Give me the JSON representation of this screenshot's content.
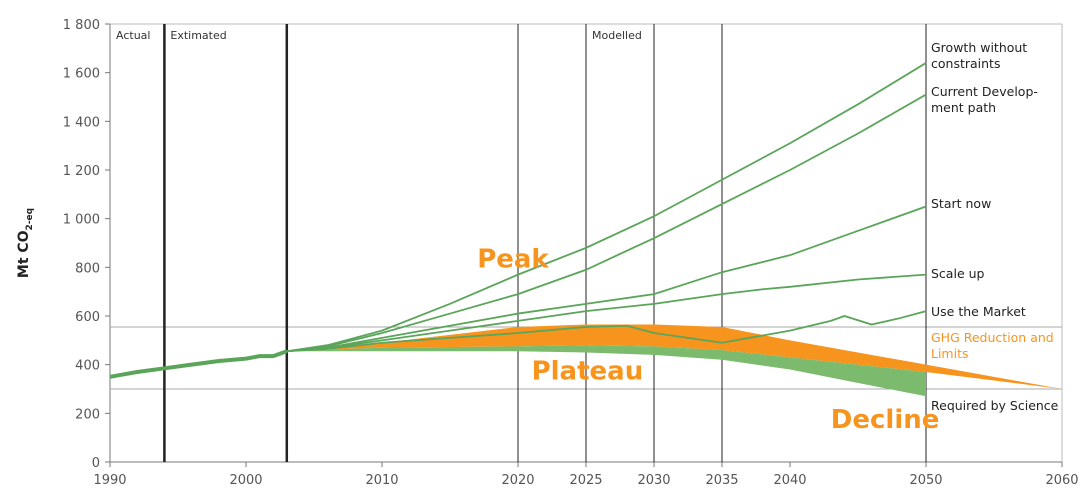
{
  "chart_data": {
    "type": "line",
    "ylabel": "Mt CO",
    "ylabel_sub": "2-eq",
    "xlim": [
      1990,
      2060
    ],
    "xticks": [
      1990,
      2000,
      2010,
      2020,
      2025,
      2030,
      2035,
      2040,
      2050,
      2060
    ],
    "ylim": [
      0,
      1800
    ],
    "yticks": [
      0,
      200,
      400,
      600,
      800,
      {
        "value": 1000,
        "label": "1 000"
      },
      {
        "value": 1200,
        "label": "1 200"
      },
      {
        "value": 1400,
        "label": "1 400"
      },
      {
        "value": 1600,
        "label": "1 600"
      },
      {
        "value": 1800,
        "label": "1 800"
      }
    ],
    "vlines": [
      1994,
      2003,
      2020,
      2025,
      2030,
      2035,
      2050
    ],
    "hlines": [
      555,
      300
    ],
    "sections": [
      {
        "text": "Actual",
        "x": 1990
      },
      {
        "text": "Extimated",
        "x": 1994
      },
      {
        "text": "Modelled",
        "x": 2025
      }
    ],
    "history": {
      "color": "#5aa55a",
      "x": [
        1990,
        1992,
        1994,
        1996,
        1998,
        2000,
        2001,
        2002,
        2003
      ],
      "values": [
        350,
        370,
        385,
        400,
        415,
        425,
        435,
        435,
        455
      ]
    },
    "series": [
      {
        "name": "Growth without constraints",
        "color": "#5aa55a",
        "x": [
          2003,
          2006,
          2010,
          2015,
          2020,
          2025,
          2030,
          2035,
          2040,
          2045,
          2050
        ],
        "values": [
          455,
          480,
          540,
          650,
          770,
          880,
          1010,
          1160,
          1310,
          1470,
          1640
        ]
      },
      {
        "name": "Current Develop-ment path",
        "color": "#5aa55a",
        "x": [
          2003,
          2006,
          2010,
          2015,
          2020,
          2025,
          2030,
          2035,
          2040,
          2045,
          2050
        ],
        "values": [
          455,
          475,
          530,
          610,
          690,
          790,
          920,
          1060,
          1200,
          1350,
          1510
        ]
      },
      {
        "name": "Start now",
        "color": "#5aa55a",
        "x": [
          2003,
          2006,
          2010,
          2015,
          2020,
          2025,
          2030,
          2035,
          2040,
          2045,
          2050
        ],
        "values": [
          455,
          470,
          510,
          560,
          610,
          650,
          690,
          780,
          850,
          950,
          1050
        ]
      },
      {
        "name": "Scale up",
        "color": "#5aa55a",
        "x": [
          2003,
          2006,
          2010,
          2015,
          2020,
          2025,
          2030,
          2035,
          2038,
          2040,
          2045,
          2050
        ],
        "values": [
          455,
          468,
          500,
          540,
          580,
          620,
          650,
          690,
          710,
          720,
          750,
          770
        ]
      },
      {
        "name": "Use the Market",
        "color": "#5aa55a",
        "x": [
          2003,
          2006,
          2010,
          2015,
          2020,
          2025,
          2028,
          2030,
          2035,
          2040,
          2043,
          2044,
          2046,
          2048,
          2050
        ],
        "values": [
          455,
          465,
          490,
          510,
          530,
          555,
          560,
          530,
          490,
          540,
          580,
          600,
          565,
          590,
          620
        ]
      }
    ],
    "bands": [
      {
        "name": "GHG Reduction and Limits",
        "color": "#f7941d",
        "x": [
          2003,
          2010,
          2020,
          2025,
          2030,
          2035,
          2040,
          2050,
          2060
        ],
        "upper": [
          455,
          490,
          555,
          565,
          565,
          555,
          500,
          400,
          300
        ],
        "lower": [
          455,
          470,
          475,
          480,
          475,
          460,
          430,
          370,
          300
        ]
      },
      {
        "name": "Required by Science",
        "color": "#7cba6e",
        "x": [
          2003,
          2010,
          2020,
          2025,
          2030,
          2035,
          2040,
          2050
        ],
        "upper": [
          455,
          470,
          475,
          480,
          475,
          460,
          430,
          370
        ],
        "lower": [
          455,
          455,
          455,
          450,
          440,
          420,
          380,
          270
        ]
      }
    ],
    "annotations": [
      {
        "text": "Peak",
        "x": 2017,
        "y": 800
      },
      {
        "text": "Plateau",
        "x": 2021,
        "y": 340
      },
      {
        "text": "Decline",
        "x": 2043,
        "y": 140
      }
    ],
    "annotation_color": "#f7941d"
  }
}
